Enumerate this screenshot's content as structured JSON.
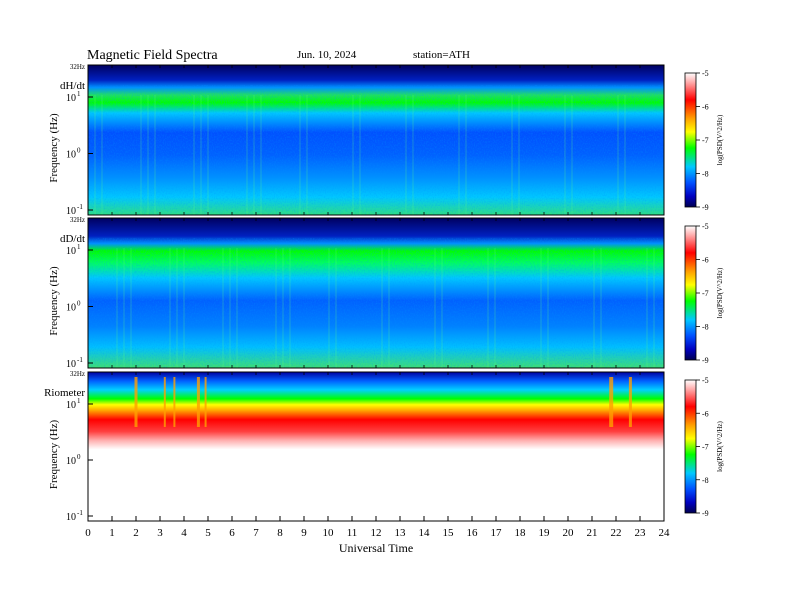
{
  "header": {
    "title": "Magnetic Field Spectra",
    "date": "Jun. 10, 2024",
    "station": "station=ATH"
  },
  "chart_data": [
    {
      "type": "heatmap",
      "panel_label": "dH/dt",
      "top_label": "32Hz",
      "ylabel": "Frequency (Hz)",
      "xlabel": "",
      "yscale": "log",
      "y_ticks": [
        {
          "base": "10",
          "exp": "1",
          "value": 10
        },
        {
          "base": "10",
          "exp": "0",
          "value": 1
        },
        {
          "base": "10",
          "exp": "-1",
          "value": 0.1
        }
      ],
      "colorbar": {
        "label": "log(PSD(V^2/Hz)",
        "ticks": [
          "-5",
          "-6",
          "-7",
          "-8",
          "-9"
        ],
        "range": [
          -9,
          -5
        ]
      }
    },
    {
      "type": "heatmap",
      "panel_label": "dD/dt",
      "top_label": "32Hz",
      "ylabel": "Frequency (Hz)",
      "xlabel": "",
      "yscale": "log",
      "y_ticks": [
        {
          "base": "10",
          "exp": "1",
          "value": 10
        },
        {
          "base": "10",
          "exp": "0",
          "value": 1
        },
        {
          "base": "10",
          "exp": "-1",
          "value": 0.1
        }
      ],
      "colorbar": {
        "label": "log(PSD(V^2/Hz)",
        "ticks": [
          "-5",
          "-6",
          "-7",
          "-8",
          "-9"
        ],
        "range": [
          -9,
          -5
        ]
      }
    },
    {
      "type": "heatmap",
      "panel_label": "Riometer",
      "top_label": "32Hz",
      "ylabel": "Frequency (Hz)",
      "xlabel": "Universal Time",
      "yscale": "log",
      "y_ticks": [
        {
          "base": "10",
          "exp": "1",
          "value": 10
        },
        {
          "base": "10",
          "exp": "0",
          "value": 1
        },
        {
          "base": "10",
          "exp": "-1",
          "value": 0.1
        }
      ],
      "x_ticks": [
        "0",
        "1",
        "2",
        "3",
        "4",
        "5",
        "6",
        "7",
        "8",
        "9",
        "10",
        "11",
        "12",
        "13",
        "14",
        "15",
        "16",
        "17",
        "18",
        "19",
        "20",
        "21",
        "22",
        "23",
        "24"
      ],
      "xlim": [
        0,
        24
      ],
      "colorbar": {
        "label": "log(PSD(V^2/Hz)",
        "ticks": [
          "-5",
          "-6",
          "-7",
          "-8",
          "-9"
        ],
        "range": [
          -9,
          -5
        ]
      }
    }
  ],
  "colors": {
    "colormap": [
      "#ffffff",
      "#ffaaaa",
      "#ff0000",
      "#ffa000",
      "#ffff00",
      "#00ff00",
      "#00c8ff",
      "#0050ff",
      "#0000c0",
      "#000050"
    ]
  }
}
